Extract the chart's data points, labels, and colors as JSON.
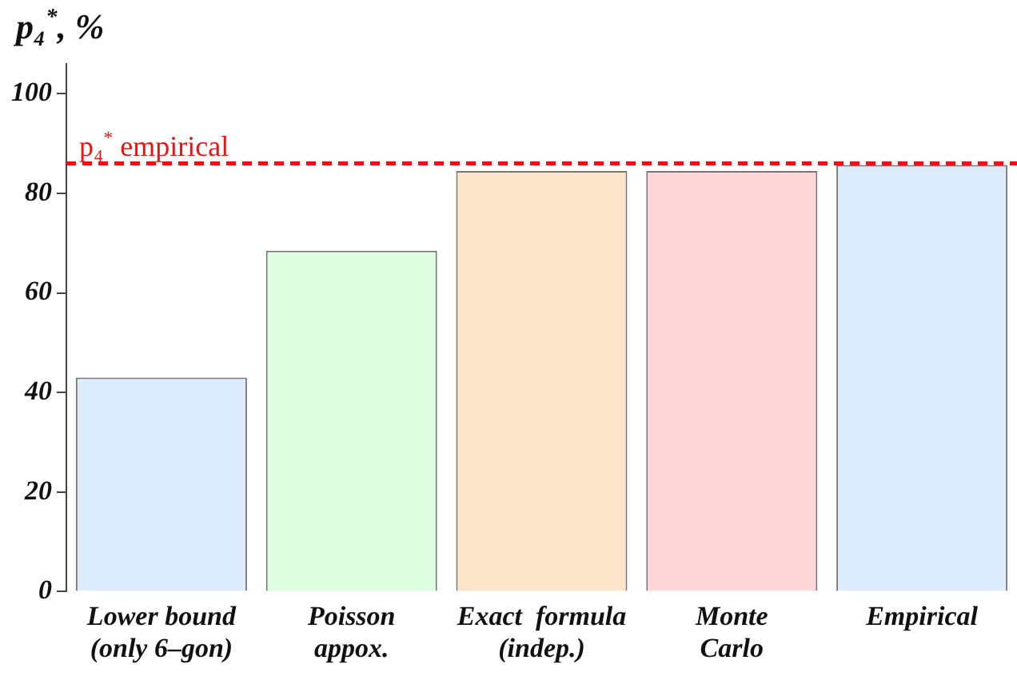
{
  "chart_data": {
    "type": "bar",
    "ylabel": "p₄$^{*}$, %",
    "categories": [
      "Lower bound\n(only 6–gon)",
      "Poisson\nappox.",
      "Exact  formula\n(indep.)",
      "Monte\nCarlo",
      "Empirical"
    ],
    "values": [
      43,
      68.5,
      84.5,
      84.5,
      85.7
    ],
    "colors": [
      "#dcecfc",
      "#defcdf",
      "#fde5cc",
      "#fdd7d7",
      "#dcecfc"
    ],
    "ylim": [
      0,
      106
    ],
    "yticks": [
      0,
      20,
      40,
      60,
      80,
      100
    ],
    "grid": false,
    "legend": false,
    "ref_lines": [
      {
        "axis": "y",
        "value": 86,
        "label": "p₄$^{*}$ empirical",
        "color": "#ee1111",
        "line_style": "dashed"
      }
    ]
  }
}
